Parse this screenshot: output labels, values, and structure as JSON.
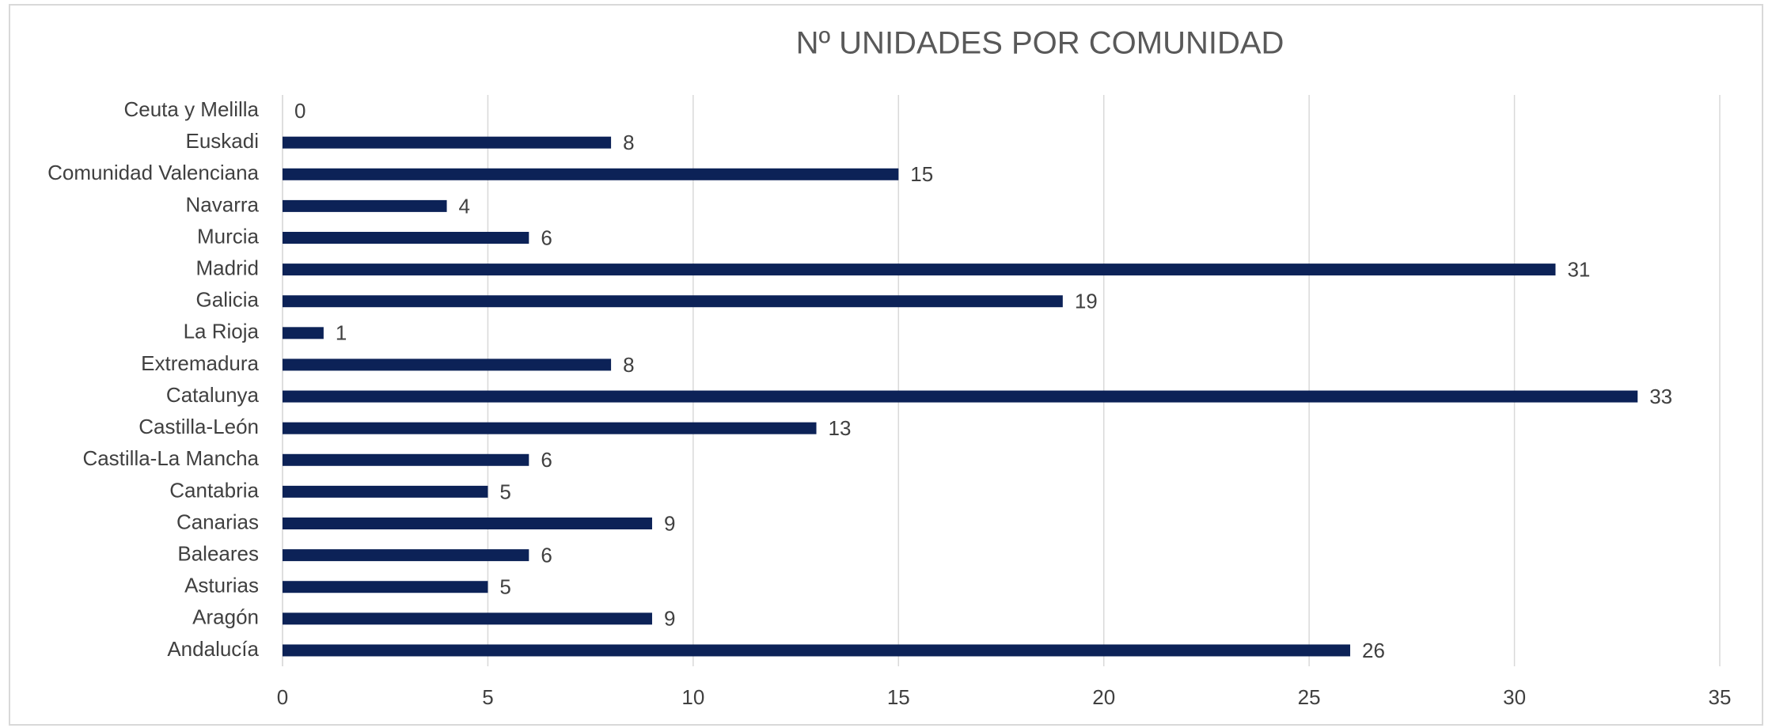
{
  "chart_data": {
    "type": "bar",
    "orientation": "horizontal",
    "title": "Nº UNIDADES POR COMUNIDAD",
    "categories": [
      "Andalucía",
      "Aragón",
      "Asturias",
      "Baleares",
      "Canarias",
      "Cantabria",
      "Castilla-La Mancha",
      "Castilla-León",
      "Catalunya",
      "Extremadura",
      "La Rioja",
      "Galicia",
      "Madrid",
      "Murcia",
      "Navarra",
      "Comunidad Valenciana",
      "Euskadi",
      "Ceuta y Melilla"
    ],
    "values": [
      26,
      9,
      5,
      6,
      9,
      5,
      6,
      13,
      33,
      8,
      1,
      19,
      31,
      6,
      4,
      15,
      8,
      0
    ],
    "color": "#0c2257",
    "xlim": [
      0,
      35
    ],
    "xticks": [
      0,
      5,
      10,
      15,
      20,
      25,
      30,
      35
    ],
    "grid": true
  }
}
